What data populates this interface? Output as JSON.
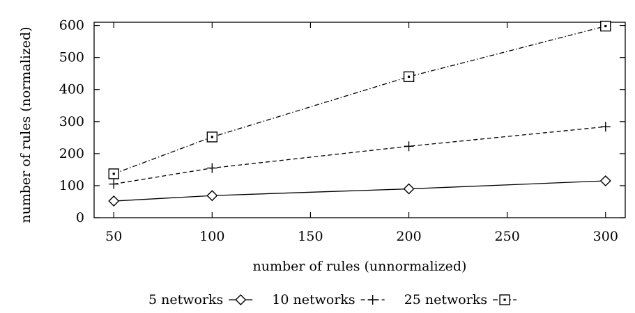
{
  "chart_data": {
    "type": "line",
    "title": "",
    "xlabel": "number of rules (unnormalized)",
    "ylabel": "number of rules (normalized)",
    "xlim": [
      40,
      310
    ],
    "ylim": [
      0,
      610
    ],
    "x_ticks": [
      50,
      100,
      150,
      200,
      250,
      300
    ],
    "y_ticks": [
      0,
      100,
      200,
      300,
      400,
      500,
      600
    ],
    "grid": false,
    "legend_position": "bottom",
    "series": [
      {
        "name": "5 networks",
        "marker": "diamond",
        "line_style": "solid",
        "color": "#000000",
        "x": [
          50,
          100,
          200,
          300
        ],
        "y": [
          52,
          69,
          90,
          115
        ]
      },
      {
        "name": "10 networks",
        "marker": "plus",
        "line_style": "dashed",
        "color": "#000000",
        "x": [
          50,
          100,
          200,
          300
        ],
        "y": [
          105,
          155,
          223,
          284
        ]
      },
      {
        "name": "25 networks",
        "marker": "square-dot",
        "line_style": "dash-dot",
        "color": "#000000",
        "x": [
          50,
          100,
          200,
          300
        ],
        "y": [
          137,
          252,
          440,
          598
        ]
      }
    ]
  }
}
